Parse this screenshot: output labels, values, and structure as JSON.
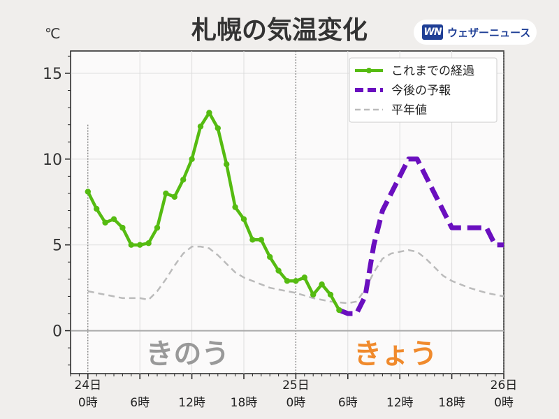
{
  "title": "札幌の気温変化",
  "unit": "℃",
  "logo": {
    "mark": "WN",
    "text": "ウェザーニュース"
  },
  "day_labels": {
    "yesterday": {
      "text": "きのう",
      "color": "#999999"
    },
    "today": {
      "text": "きょう",
      "color": "#f08a2c"
    }
  },
  "colors": {
    "observed": "#55bb11",
    "forecast": "#6a0fbf",
    "normal": "#bbbbbb"
  },
  "chart_data": {
    "type": "line",
    "title": "札幌の気温変化",
    "ylabel": "℃",
    "ylim": [
      -2.5,
      16.3
    ],
    "xlim": [
      -2,
      48
    ],
    "yticks": [
      0,
      5,
      10,
      15
    ],
    "xticks": [
      {
        "hour": 0,
        "line1": "24日",
        "line2": "0時"
      },
      {
        "hour": 6,
        "line1": "",
        "line2": "6時"
      },
      {
        "hour": 12,
        "line1": "",
        "line2": "12時"
      },
      {
        "hour": 18,
        "line1": "",
        "line2": "18時"
      },
      {
        "hour": 24,
        "line1": "25日",
        "line2": "0時"
      },
      {
        "hour": 30,
        "line1": "",
        "line2": "6時"
      },
      {
        "hour": 36,
        "line1": "",
        "line2": "12時"
      },
      {
        "hour": 42,
        "line1": "",
        "line2": "18時"
      },
      {
        "hour": 48,
        "line1": "26日",
        "line2": "0時"
      }
    ],
    "grid": true,
    "legend_position": "top-right",
    "series": [
      {
        "name": "これまでの経過",
        "style": "solid-markers",
        "x": [
          0,
          1,
          2,
          3,
          4,
          5,
          6,
          7,
          8,
          9,
          10,
          11,
          12,
          13,
          14,
          15,
          16,
          17,
          18,
          19,
          20,
          21,
          22,
          23,
          24,
          25,
          26,
          27,
          28,
          29
        ],
        "values": [
          8.1,
          7.1,
          6.3,
          6.5,
          6.0,
          5.0,
          5.0,
          5.1,
          6.0,
          8.0,
          7.8,
          8.8,
          10.0,
          11.9,
          12.7,
          11.8,
          9.7,
          7.2,
          6.5,
          5.3,
          5.3,
          4.3,
          3.5,
          2.9,
          2.9,
          3.1,
          2.1,
          2.7,
          2.1,
          1.2
        ]
      },
      {
        "name": "今後の予報",
        "style": "dashed-thick",
        "x": [
          29,
          30,
          31,
          32,
          33,
          34,
          35,
          36,
          37,
          38,
          39,
          40,
          41,
          42,
          43,
          44,
          45,
          46,
          47,
          48
        ],
        "values": [
          1.2,
          1.0,
          1.0,
          2.0,
          5.0,
          7.0,
          8.0,
          9.0,
          10.0,
          10.0,
          9.0,
          8.0,
          7.0,
          6.0,
          6.0,
          6.0,
          6.0,
          6.0,
          5.0,
          5.0
        ]
      },
      {
        "name": "平年値",
        "style": "dashed-thin",
        "x": [
          0,
          2,
          4,
          6,
          7,
          8,
          9,
          10,
          11,
          12,
          13,
          14,
          15,
          16,
          17,
          18,
          19,
          20,
          21,
          22,
          23,
          24,
          26,
          28,
          30,
          31,
          32,
          33,
          34,
          35,
          36,
          37,
          38,
          39,
          40,
          41,
          42,
          44,
          46,
          48
        ],
        "values": [
          2.3,
          2.1,
          1.9,
          1.9,
          1.8,
          2.3,
          3.0,
          3.8,
          4.5,
          4.9,
          4.9,
          4.8,
          4.4,
          3.9,
          3.4,
          3.1,
          2.9,
          2.7,
          2.5,
          2.4,
          2.3,
          2.2,
          1.9,
          1.7,
          1.6,
          1.7,
          2.4,
          3.4,
          4.2,
          4.5,
          4.6,
          4.7,
          4.6,
          4.2,
          3.7,
          3.2,
          2.9,
          2.5,
          2.2,
          2.0
        ]
      }
    ]
  }
}
